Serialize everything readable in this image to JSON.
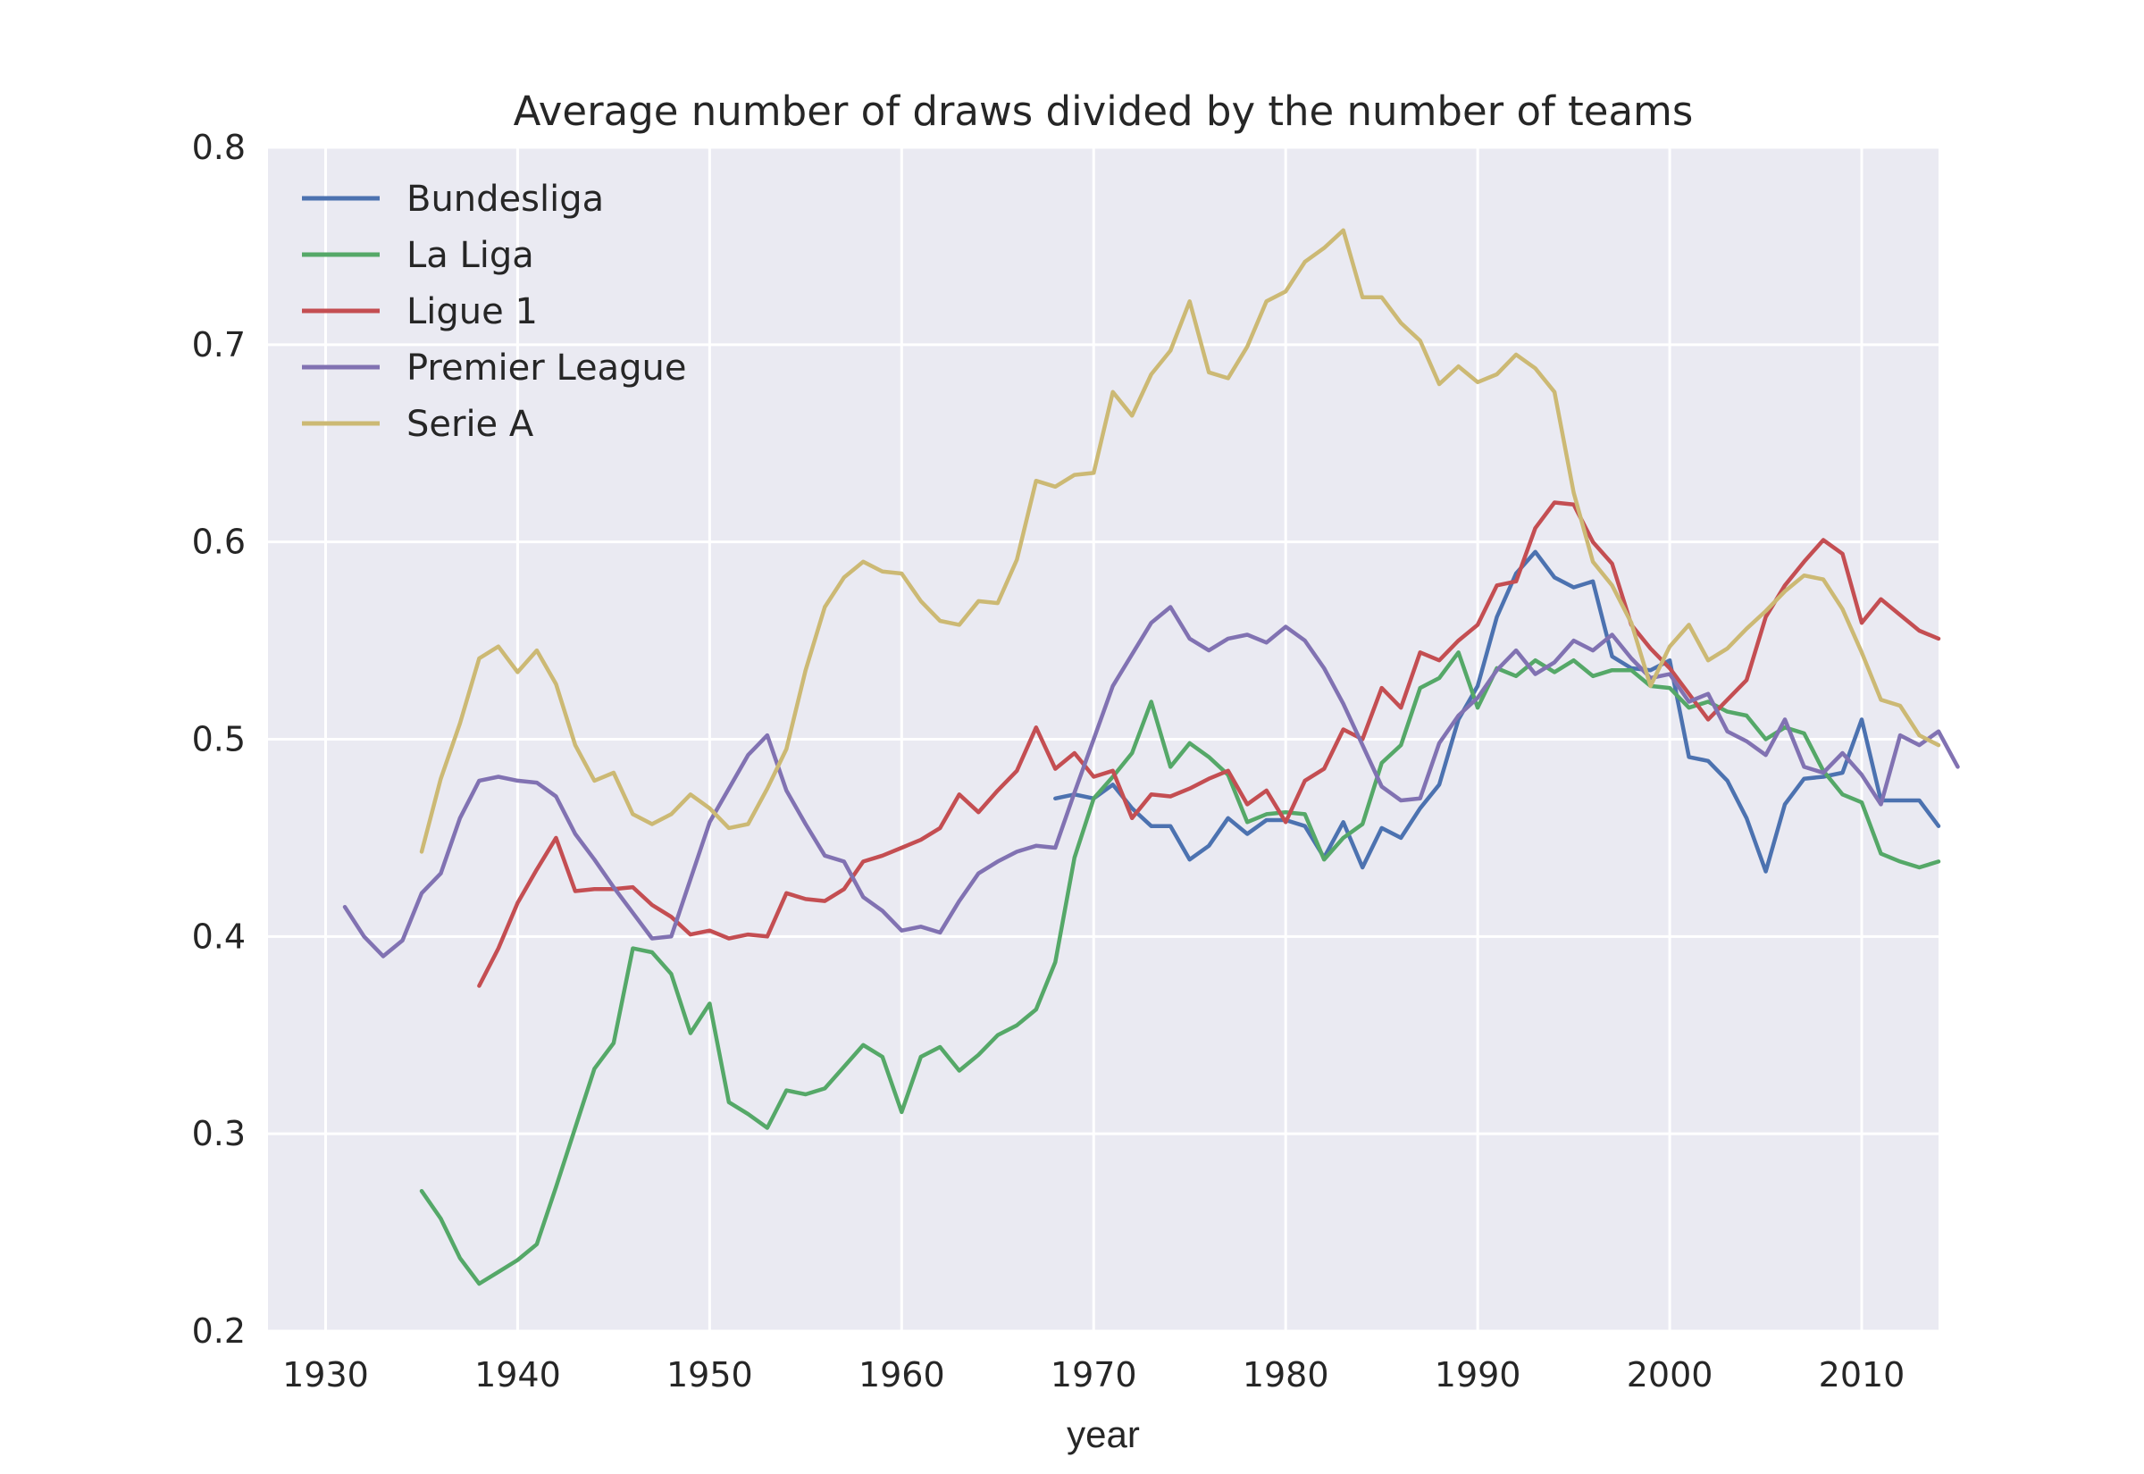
{
  "chart_data": {
    "type": "line",
    "title": "Average number of draws divided by the number of teams",
    "xlabel": "year",
    "ylabel": "",
    "xlim": [
      1927,
      2014
    ],
    "ylim": [
      0.2,
      0.8
    ],
    "xticks": [
      "1930",
      "1940",
      "1950",
      "1960",
      "1970",
      "1980",
      "1990",
      "2000",
      "2010"
    ],
    "yticks": [
      "0.2",
      "0.3",
      "0.4",
      "0.5",
      "0.6",
      "0.7",
      "0.8"
    ],
    "grid": true,
    "legend_position": "top-left",
    "series": [
      {
        "name": "Bundesliga",
        "color": "#4c72b0",
        "x0": 1968,
        "values": [
          0.47,
          0.472,
          0.47,
          0.477,
          0.465,
          0.456,
          0.456,
          0.439,
          0.446,
          0.46,
          0.452,
          0.459,
          0.459,
          0.456,
          0.44,
          0.458,
          0.435,
          0.455,
          0.45,
          0.465,
          0.477,
          0.51,
          0.527,
          0.562,
          0.584,
          0.595,
          0.582,
          0.577,
          0.58,
          0.542,
          0.536,
          0.535,
          0.54,
          0.491,
          0.489,
          0.479,
          0.46,
          0.433,
          0.467,
          0.48,
          0.481,
          0.483,
          0.51,
          0.469,
          0.469,
          0.469,
          0.456
        ]
      },
      {
        "name": "La Liga",
        "color": "#55a868",
        "x0": 1935,
        "values": [
          0.271,
          0.257,
          0.237,
          0.224,
          0.23,
          0.236,
          0.244,
          0.273,
          0.303,
          0.333,
          0.346,
          0.394,
          0.392,
          0.381,
          0.351,
          0.366,
          0.316,
          0.31,
          0.303,
          0.322,
          0.32,
          0.323,
          0.334,
          0.345,
          0.339,
          0.311,
          0.339,
          0.344,
          0.332,
          0.34,
          0.35,
          0.355,
          0.363,
          0.387,
          0.44,
          0.47,
          0.481,
          0.493,
          0.519,
          0.486,
          0.498,
          0.491,
          0.482,
          0.458,
          0.462,
          0.463,
          0.462,
          0.439,
          0.45,
          0.457,
          0.488,
          0.497,
          0.526,
          0.531,
          0.544,
          0.516,
          0.536,
          0.532,
          0.54,
          0.534,
          0.54,
          0.532,
          0.535,
          0.535,
          0.527,
          0.526,
          0.516,
          0.519,
          0.514,
          0.512,
          0.5,
          0.506,
          0.503,
          0.484,
          0.472,
          0.468,
          0.442,
          0.438,
          0.435,
          0.438
        ]
      },
      {
        "name": "Ligue 1",
        "color": "#c44e52",
        "x0": 1938,
        "values": [
          0.375,
          0.394,
          0.417,
          0.434,
          0.45,
          0.423,
          0.424,
          0.424,
          0.425,
          0.416,
          0.41,
          0.401,
          0.403,
          0.399,
          0.401,
          0.4,
          0.422,
          0.419,
          0.418,
          0.424,
          0.438,
          0.441,
          0.445,
          0.449,
          0.455,
          0.472,
          0.463,
          0.474,
          0.484,
          0.506,
          0.485,
          0.493,
          0.481,
          0.484,
          0.46,
          0.472,
          0.471,
          0.475,
          0.48,
          0.484,
          0.467,
          0.474,
          0.458,
          0.479,
          0.485,
          0.505,
          0.5,
          0.526,
          0.516,
          0.544,
          0.54,
          0.55,
          0.558,
          0.578,
          0.58,
          0.607,
          0.62,
          0.619,
          0.6,
          0.589,
          0.558,
          0.546,
          0.536,
          0.523,
          0.51,
          0.52,
          0.53,
          0.562,
          0.578,
          0.59,
          0.601,
          0.594,
          0.559,
          0.571,
          0.563,
          0.555,
          0.551
        ]
      },
      {
        "name": "Premier League",
        "color": "#8172b2",
        "x0": 1931,
        "values": [
          0.415,
          0.4,
          0.39,
          0.398,
          0.422,
          0.432,
          0.46,
          0.479,
          0.481,
          0.479,
          0.478,
          0.471,
          0.452,
          0.439,
          0.425,
          0.412,
          0.399,
          0.4,
          0.429,
          0.458,
          0.475,
          0.492,
          0.502,
          0.474,
          0.457,
          0.441,
          0.438,
          0.42,
          0.413,
          0.403,
          0.405,
          0.402,
          0.418,
          0.432,
          0.438,
          0.443,
          0.446,
          0.445,
          0.473,
          0.5,
          0.527,
          0.543,
          0.559,
          0.567,
          0.551,
          0.545,
          0.551,
          0.553,
          0.549,
          0.557,
          0.55,
          0.536,
          0.518,
          0.497,
          0.476,
          0.469,
          0.47,
          0.498,
          0.512,
          0.521,
          0.535,
          0.545,
          0.533,
          0.539,
          0.55,
          0.545,
          0.553,
          0.541,
          0.531,
          0.533,
          0.519,
          0.523,
          0.504,
          0.499,
          0.492,
          0.51,
          0.486,
          0.483,
          0.493,
          0.482,
          0.467,
          0.502,
          0.497,
          0.504,
          0.486
        ]
      },
      {
        "name": "Serie A",
        "color": "#ccb974",
        "x0": 1935,
        "values": [
          0.443,
          0.48,
          0.508,
          0.541,
          0.547,
          0.534,
          0.545,
          0.528,
          0.497,
          0.479,
          0.483,
          0.462,
          0.457,
          0.462,
          0.472,
          0.465,
          0.455,
          0.457,
          0.475,
          0.495,
          0.535,
          0.567,
          0.582,
          0.59,
          0.585,
          0.584,
          0.57,
          0.56,
          0.558,
          0.57,
          0.569,
          0.591,
          0.631,
          0.628,
          0.634,
          0.635,
          0.676,
          0.664,
          0.685,
          0.697,
          0.722,
          0.686,
          0.683,
          0.699,
          0.722,
          0.727,
          0.742,
          0.749,
          0.758,
          0.724,
          0.724,
          0.711,
          0.702,
          0.68,
          0.689,
          0.681,
          0.685,
          0.695,
          0.688,
          0.676,
          0.625,
          0.59,
          0.578,
          0.559,
          0.527,
          0.547,
          0.558,
          0.54,
          0.546,
          0.556,
          0.565,
          0.575,
          0.583,
          0.581,
          0.566,
          0.544,
          0.52,
          0.517,
          0.502,
          0.497
        ]
      }
    ]
  }
}
